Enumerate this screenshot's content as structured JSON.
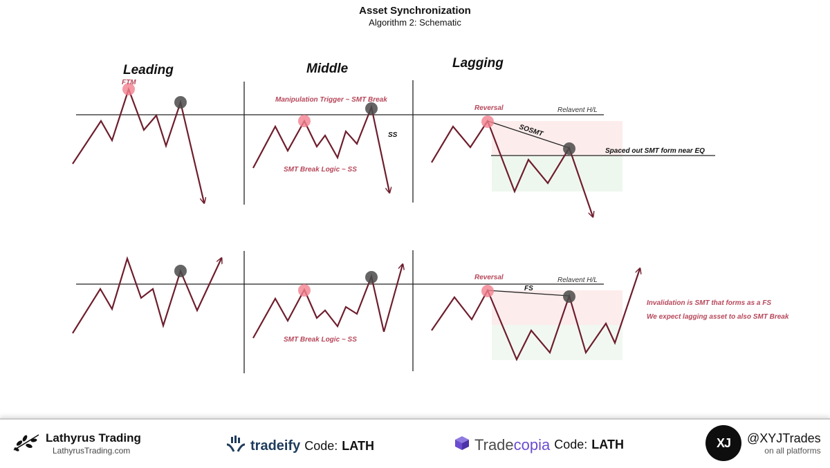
{
  "header": {
    "title": "Asset Synchronization",
    "subtitle": "Algorithm 2: Schematic"
  },
  "columns": {
    "leading": "Leading",
    "middle": "Middle",
    "lagging": "Lagging"
  },
  "annotations": {
    "ftm": "FTM",
    "manipulation": "Manipulation Trigger ~ SMT Break",
    "ss": "SS",
    "smt_break_logic_top": "SMT Break Logic ~ SS",
    "reversal_top": "Reversal",
    "relavent_top": "Relavent H/L",
    "sosmt": "SOSMT",
    "spaced_out": "Spaced out SMT form near EQ",
    "smt_break_logic_bottom": "SMT Break Logic ~ SS",
    "reversal_bottom": "Reversal",
    "relavent_bottom": "Relavent H/L",
    "fs": "FS",
    "invalidation": "Invalidation is SMT that forms as a FS",
    "expect": "We expect lagging asset to also SMT Break"
  },
  "colors": {
    "price_line": "#6e1d2c",
    "pink_marker": "#f27f8e",
    "gray_marker": "#4a4a4a",
    "annotation": "#b6475a",
    "premium_zone": "#fdecec",
    "discount_zone": "#eef7ee"
  },
  "footer": {
    "brand": "Lathyrus Trading",
    "site": "LathyrusTrading.com",
    "tradeify": {
      "name": "tradeify",
      "code_label": "Code:",
      "code": "LATH"
    },
    "tradecopia": {
      "name_a": "Trade",
      "name_b": "copia",
      "code_label": "Code:",
      "code": "LATH"
    },
    "logo_text": "XJ",
    "handle": "@XYJTrades",
    "handle_sub": "on all platforms",
    "icons": [
      "leaf-branch-icon",
      "tradeify-hands-icon",
      "tradecopia-cube-icon"
    ]
  }
}
